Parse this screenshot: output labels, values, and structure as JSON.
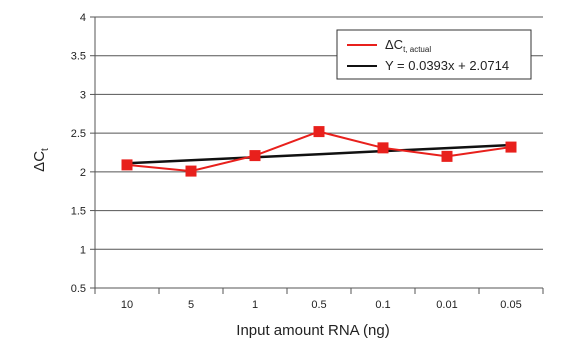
{
  "chart_data": {
    "type": "line",
    "title": "",
    "xlabel": "Input amount RNA (ng)",
    "ylabel_main": "ΔC",
    "ylabel_sub": "t",
    "categories": [
      "10",
      "5",
      "1",
      "0.5",
      "0.1",
      "0.01",
      "0.05"
    ],
    "y_ticks": [
      "0.5",
      "1",
      "1.5",
      "2",
      "2.5",
      "3",
      "3.5",
      "4"
    ],
    "ylim": [
      0.5,
      4
    ],
    "grid": "horizontal",
    "legend_position": "top-right",
    "series": [
      {
        "name_main": "ΔC",
        "name_sub": "t, actual",
        "color": "#e8201c",
        "marker": "square",
        "values": [
          2.09,
          2.01,
          2.21,
          2.52,
          2.31,
          2.2,
          2.32
        ]
      },
      {
        "name": "Y = 0.0393x + 2.0714",
        "color": "#111111",
        "marker": "none",
        "values": [
          2.1107,
          2.15,
          2.1893,
          2.2286,
          2.2679,
          2.3072,
          2.3465
        ]
      }
    ]
  }
}
